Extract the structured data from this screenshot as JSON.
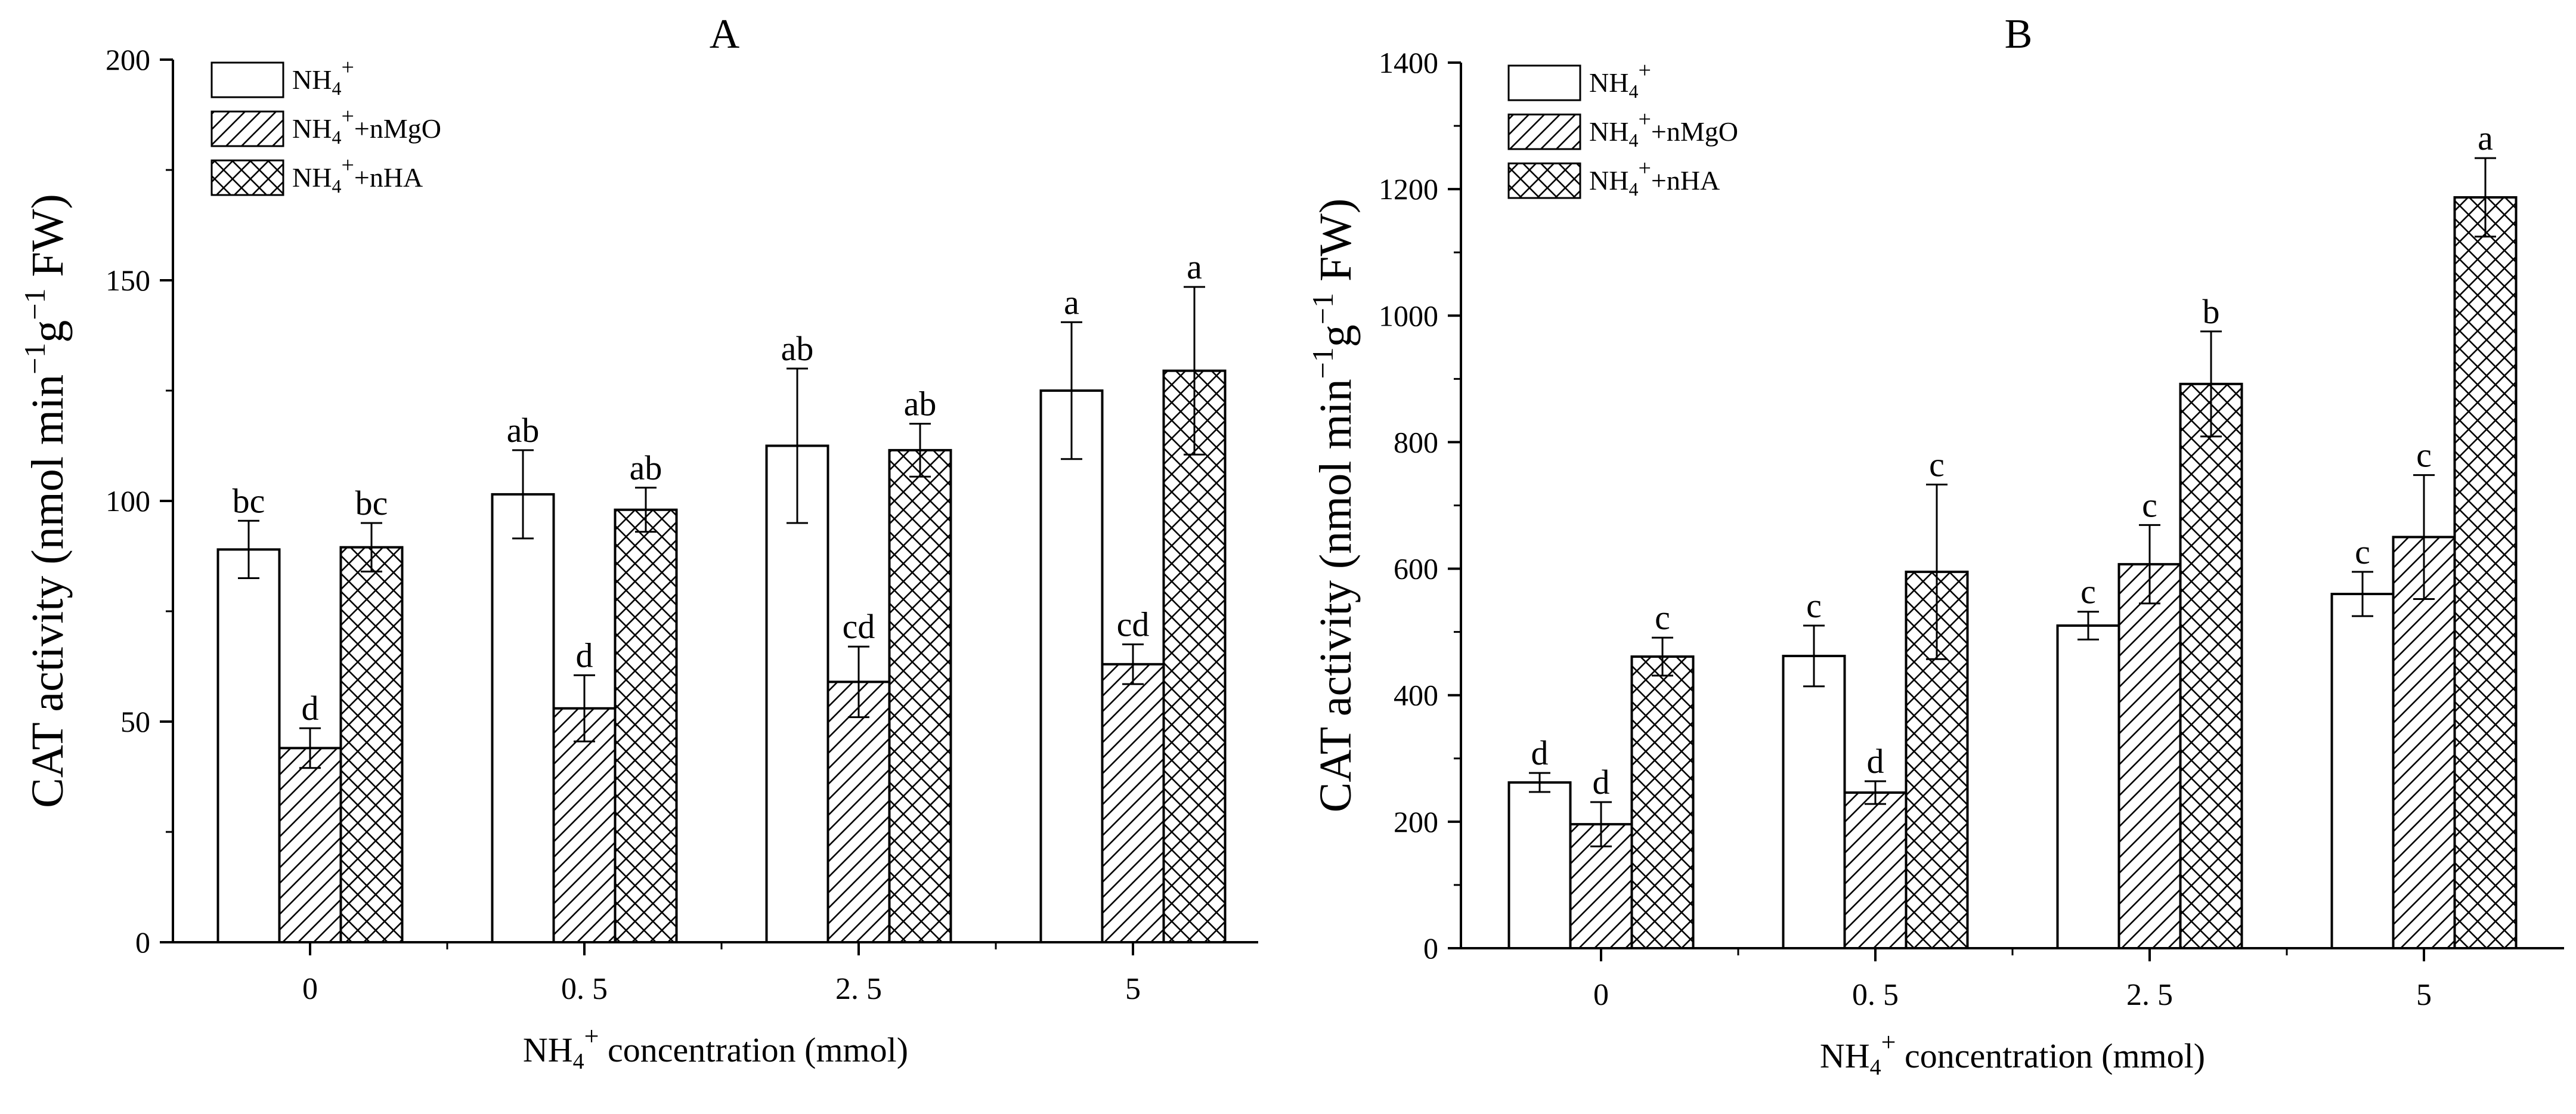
{
  "chart_data": [
    {
      "panel": "A",
      "title": "A",
      "type": "bar",
      "ylabel_main": "CAT activity (nmol min",
      "ylabel_sup1": "−1",
      "ylabel_g": "g",
      "ylabel_sup2": "−1",
      "ylabel_end": " FW)",
      "xlabel_pre": "NH",
      "xlabel_sub": "4",
      "xlabel_sup": "+",
      "xlabel_post": " concentration (mmol)",
      "categories": [
        "0",
        "0. 5",
        "2. 5",
        "5"
      ],
      "ylim": [
        0,
        200
      ],
      "yticks": [
        0,
        50,
        100,
        150,
        200
      ],
      "legend_position": "top-left",
      "series": [
        {
          "name": "NH4+",
          "legend_base": "NH",
          "legend_sub": "4",
          "legend_sup": "+",
          "legend_tail": "",
          "pattern": "none",
          "values": [
            89,
            101.5,
            112.5,
            125
          ],
          "errors": [
            6.5,
            10,
            17.5,
            15.5
          ],
          "letters": [
            "bc",
            "ab",
            "ab",
            "a"
          ]
        },
        {
          "name": "NH4+ +nMgO",
          "legend_base": "NH",
          "legend_sub": "4",
          "legend_sup": "+",
          "legend_tail": "+nMgO",
          "pattern": "hatch",
          "values": [
            44,
            53,
            59,
            63
          ],
          "errors": [
            4.5,
            7.5,
            8,
            4.5
          ],
          "letters": [
            "d",
            "d",
            "cd",
            "cd"
          ]
        },
        {
          "name": "NH4+ +nHA",
          "legend_base": "NH",
          "legend_sub": "4",
          "legend_sup": "+",
          "legend_tail": "+nHA",
          "pattern": "cross",
          "values": [
            89.5,
            98,
            111.5,
            129.5
          ],
          "errors": [
            5.5,
            5,
            6,
            19
          ],
          "letters": [
            "bc",
            "ab",
            "ab",
            "a"
          ]
        }
      ]
    },
    {
      "panel": "B",
      "title": "B",
      "type": "bar",
      "ylabel_main": "CAT activity (nmol min",
      "ylabel_sup1": "−1",
      "ylabel_g": "g",
      "ylabel_sup2": "−1",
      "ylabel_end": " FW)",
      "xlabel_pre": "NH",
      "xlabel_sub": "4",
      "xlabel_sup": "+",
      "xlabel_post": " concentration (mmol)",
      "categories": [
        "0",
        "0. 5",
        "2. 5",
        "5"
      ],
      "ylim": [
        0,
        1400
      ],
      "yticks": [
        0,
        200,
        400,
        600,
        800,
        1000,
        1200,
        1400
      ],
      "legend_position": "top-left",
      "series": [
        {
          "name": "NH4+",
          "legend_base": "NH",
          "legend_sub": "4",
          "legend_sup": "+",
          "legend_tail": "",
          "pattern": "none",
          "values": [
            262,
            462,
            510,
            560
          ],
          "errors": [
            15,
            48,
            22,
            35
          ],
          "letters": [
            "d",
            "c",
            "c",
            "c"
          ]
        },
        {
          "name": "NH4+ +nMgO",
          "legend_base": "NH",
          "legend_sub": "4",
          "legend_sup": "+",
          "legend_tail": "+nMgO",
          "pattern": "hatch",
          "values": [
            196,
            246,
            607,
            650
          ],
          "errors": [
            35,
            18,
            62,
            98
          ],
          "letters": [
            "d",
            "d",
            "c",
            "c"
          ]
        },
        {
          "name": "NH4+ +nHA",
          "legend_base": "NH",
          "legend_sub": "4",
          "legend_sup": "+",
          "legend_tail": "+nHA",
          "pattern": "cross",
          "values": [
            461,
            595,
            892,
            1187
          ],
          "errors": [
            30,
            138,
            83,
            62
          ],
          "letters": [
            "c",
            "c",
            "b",
            "a"
          ]
        }
      ]
    }
  ]
}
